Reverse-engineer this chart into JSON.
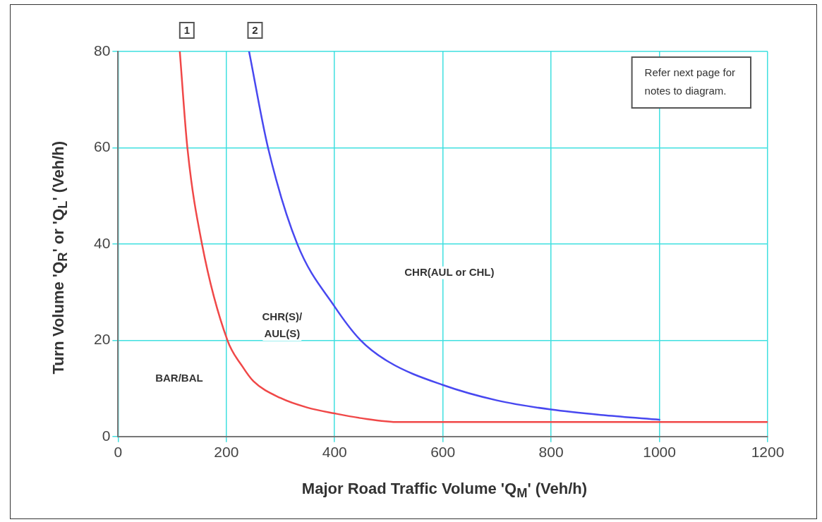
{
  "chart_data": {
    "type": "line",
    "xlabel": "Major Road Traffic Volume 'Q$_{M}$' (Veh/h)",
    "ylabel": "Turn Volume 'Q$_{R}$' or 'Q$_{L}$' (Veh/h)",
    "series": [
      {
        "color": "#f04848",
        "x": [
          114,
          128,
          155,
          202,
          230,
          250,
          300,
          350,
          400,
          450,
          520,
          700,
          1000,
          1200
        ],
        "values": [
          80,
          60,
          40,
          20,
          14.5,
          11.5,
          8,
          6,
          4.8,
          3.8,
          3,
          3,
          3,
          3
        ]
      },
      {
        "color": "#4848f0",
        "x": [
          242,
          277,
          331,
          400,
          448,
          500,
          600,
          700,
          800,
          900,
          1000
        ],
        "values": [
          80,
          60,
          40,
          27,
          20,
          15.5,
          10.7,
          7.5,
          5.6,
          4.4,
          3.5
        ]
      }
    ],
    "xlim": [
      0,
      1200
    ],
    "xticks": [
      0,
      200,
      400,
      600,
      800,
      1000,
      1200
    ],
    "ylim": [
      0,
      80
    ],
    "yticks": [
      0,
      20,
      40,
      60,
      80
    ],
    "grid": true,
    "legend": false,
    "marker": "none",
    "line_style": "solid",
    "annotations": [
      "1",
      "2",
      "BAR/BAL",
      "CHR(S)/\nAUL(S)",
      "CHR(AUL or CHL)",
      "Refer next page for\nnotes to diagram."
    ]
  }
}
